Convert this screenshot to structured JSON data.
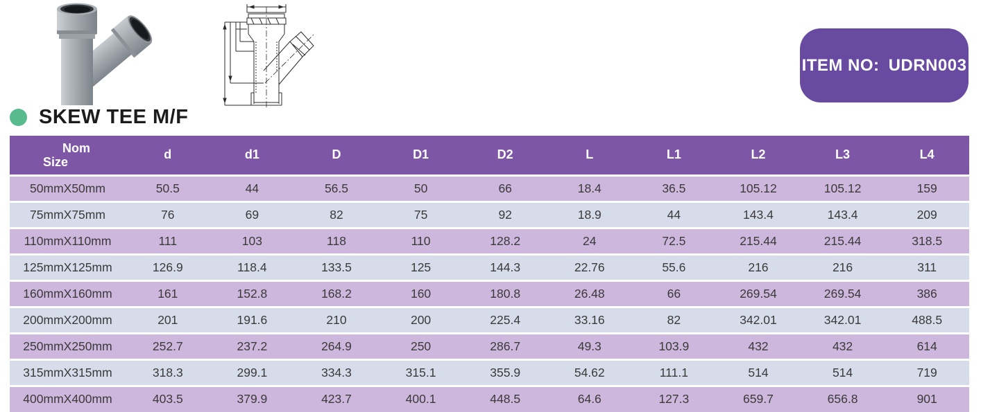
{
  "badge": {
    "label": "ITEM NO:",
    "value": "UDRN003"
  },
  "heading": {
    "title": "SKEW TEE M/F"
  },
  "images": {
    "photo": "skew-tee-mf-product-photo",
    "drawing": "skew-tee-mf-technical-drawing"
  },
  "colors": {
    "header_purple": "#7d57a6",
    "badge_purple": "#684ba0",
    "row_mauve": "#cdb7dd",
    "row_bluegray": "#d7dcea",
    "accent_green": "#57bb8d"
  },
  "table": {
    "first_header": {
      "line1": "Nom",
      "line2": "Size"
    },
    "columns": [
      "d",
      "d1",
      "D",
      "D1",
      "D2",
      "L",
      "L1",
      "L2",
      "L3",
      "L4"
    ],
    "rows": [
      [
        "50mmX50mm",
        "50.5",
        "44",
        "56.5",
        "50",
        "66",
        "18.4",
        "36.5",
        "105.12",
        "105.12",
        "159"
      ],
      [
        "75mmX75mm",
        "76",
        "69",
        "82",
        "75",
        "92",
        "18.9",
        "44",
        "143.4",
        "143.4",
        "209"
      ],
      [
        "110mmX110mm",
        "111",
        "103",
        "118",
        "110",
        "128.2",
        "24",
        "72.5",
        "215.44",
        "215.44",
        "318.5"
      ],
      [
        "125mmX125mm",
        "126.9",
        "118.4",
        "133.5",
        "125",
        "144.3",
        "22.76",
        "55.6",
        "216",
        "216",
        "311"
      ],
      [
        "160mmX160mm",
        "161",
        "152.8",
        "168.2",
        "160",
        "180.8",
        "26.48",
        "66",
        "269.54",
        "269.54",
        "386"
      ],
      [
        "200mmX200mm",
        "201",
        "191.6",
        "210",
        "200",
        "225.4",
        "33.16",
        "82",
        "342.01",
        "342.01",
        "488.5"
      ],
      [
        "250mmX250mm",
        "252.7",
        "237.2",
        "264.9",
        "250",
        "286.7",
        "49.3",
        "103.9",
        "432",
        "432",
        "614"
      ],
      [
        "315mmX315mm",
        "318.3",
        "299.1",
        "334.3",
        "315.1",
        "355.9",
        "54.62",
        "111.1",
        "514",
        "514",
        "719"
      ],
      [
        "400mmX400mm",
        "403.5",
        "379.9",
        "423.7",
        "400.1",
        "448.5",
        "64.6",
        "127.3",
        "659.7",
        "656.8",
        "901"
      ]
    ]
  }
}
